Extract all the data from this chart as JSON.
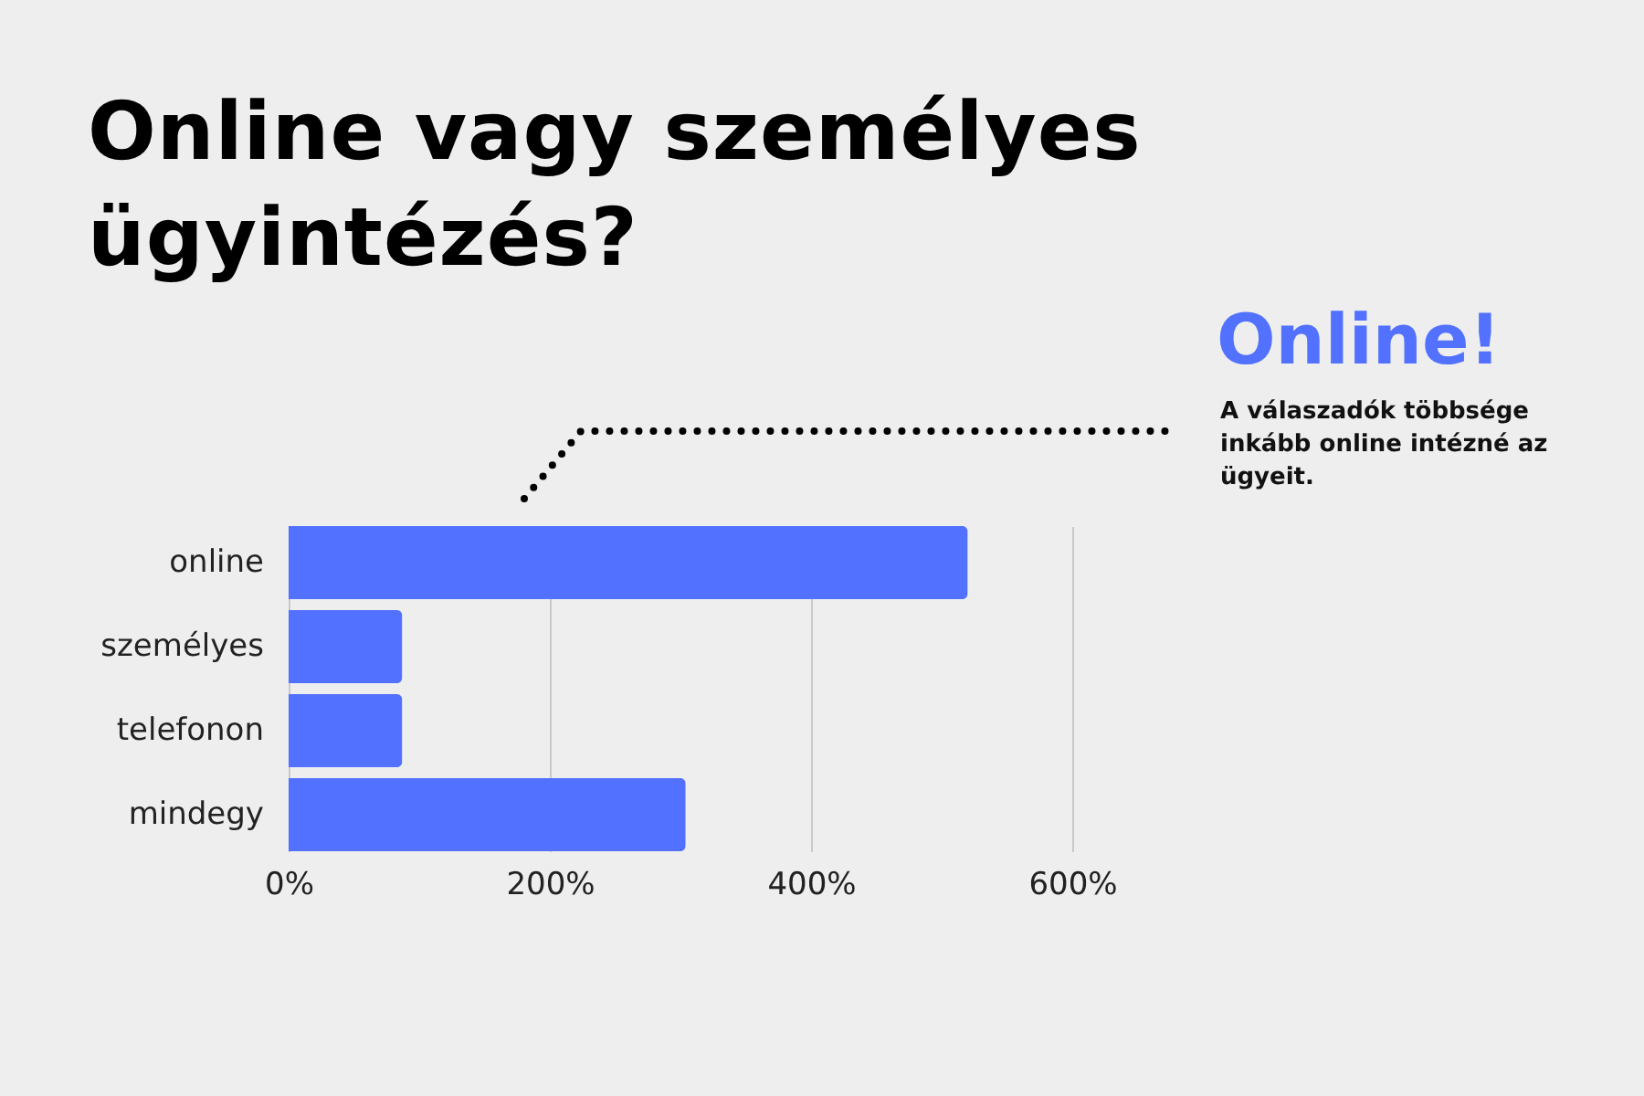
{
  "chart_data": {
    "type": "bar",
    "title": "Online vagy személyes ügyintézés?",
    "orientation": "horizontal",
    "categories": [
      "online",
      "személyes",
      "telefonon",
      "mindegy"
    ],
    "values": [
      520,
      87,
      87,
      304
    ],
    "color": "#5271ff",
    "xlim": [
      0,
      600
    ],
    "xticks": [
      {
        "value": 0,
        "label": "0%"
      },
      {
        "value": 200,
        "label": "200%"
      },
      {
        "value": 400,
        "label": "400%"
      },
      {
        "value": 600,
        "label": "600%"
      }
    ],
    "grid": "x",
    "annotations": [
      "Online!",
      "A válaszadók többsége inkább online intézné az ügyeit."
    ]
  }
}
